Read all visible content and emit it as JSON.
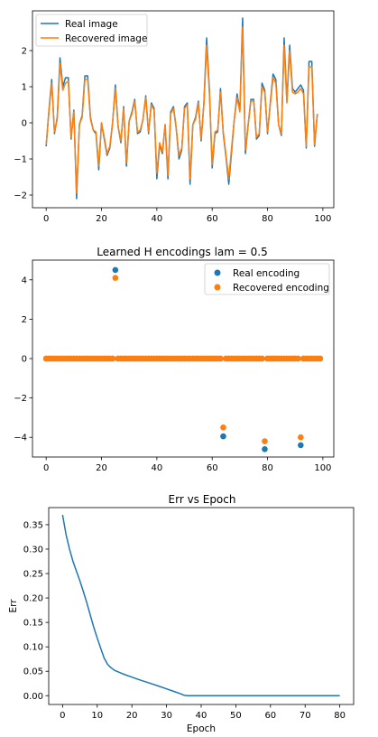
{
  "chart_data": [
    {
      "type": "line",
      "title": "",
      "xlabel": "",
      "ylabel": "",
      "xlim": [
        -4.95,
        103.95
      ],
      "ylim": [
        -2.35,
        3.1
      ],
      "xticks": [
        0,
        20,
        40,
        60,
        80,
        100
      ],
      "yticks": [
        -2,
        -1,
        0,
        1,
        2
      ],
      "legend": "top-left",
      "series": [
        {
          "name": "Real image",
          "color": "#1f77b4",
          "values": [
            -0.65,
            0.35,
            1.2,
            -0.3,
            0.15,
            1.8,
            1.0,
            1.25,
            1.25,
            -0.45,
            0.35,
            -2.1,
            -0.05,
            0.2,
            1.3,
            1.3,
            0.15,
            -0.2,
            -0.3,
            -1.3,
            0.0,
            -0.45,
            -0.9,
            -0.7,
            0.0,
            1.05,
            -0.1,
            -0.55,
            0.45,
            -1.2,
            0.05,
            0.3,
            0.65,
            -0.3,
            -0.25,
            0.1,
            0.75,
            -0.3,
            0.55,
            0.4,
            -1.55,
            -0.6,
            -0.85,
            -0.05,
            -1.55,
            0.3,
            0.45,
            -0.15,
            -1.0,
            -0.75,
            0.45,
            0.55,
            -1.7,
            -0.05,
            0.15,
            0.6,
            -0.5,
            0.55,
            2.35,
            0.9,
            -1.25,
            -0.3,
            -0.25,
            0.95,
            -0.3,
            -0.95,
            -1.7,
            -0.8,
            0.1,
            0.8,
            0.35,
            2.9,
            -0.85,
            -0.05,
            0.65,
            0.65,
            -0.45,
            -0.35,
            1.1,
            0.9,
            -0.3,
            0.55,
            1.35,
            1.2,
            -0.05,
            -0.35,
            2.35,
            0.6,
            2.15,
            0.95,
            0.85,
            0.95,
            1.05,
            0.9,
            -0.7,
            1.7,
            1.7,
            -0.65,
            0.25,
            null
          ],
          "note": ""
        },
        {
          "name": "Recovered image",
          "color": "#ff7f0e",
          "values": [
            -0.6,
            0.3,
            1.1,
            -0.25,
            0.1,
            1.65,
            0.9,
            1.1,
            1.15,
            -0.4,
            0.3,
            -1.95,
            -0.05,
            0.15,
            1.2,
            1.2,
            0.1,
            -0.2,
            -0.25,
            -1.2,
            0.0,
            -0.4,
            -0.85,
            -0.65,
            0.0,
            0.95,
            -0.1,
            -0.5,
            0.4,
            -1.1,
            0.05,
            0.25,
            0.6,
            -0.25,
            -0.2,
            0.1,
            0.7,
            -0.25,
            0.5,
            0.35,
            -1.4,
            -0.55,
            -0.8,
            -0.05,
            -1.45,
            0.25,
            0.4,
            -0.15,
            -0.9,
            -0.7,
            0.4,
            0.5,
            -1.55,
            -0.05,
            0.1,
            0.55,
            -0.45,
            0.5,
            2.15,
            0.8,
            -1.15,
            -0.25,
            -0.2,
            0.85,
            -0.25,
            -0.9,
            -1.55,
            -0.7,
            0.1,
            0.7,
            0.3,
            2.65,
            -0.75,
            -0.05,
            0.6,
            0.6,
            -0.4,
            -0.3,
            1.0,
            0.85,
            -0.25,
            0.5,
            1.25,
            1.1,
            -0.05,
            -0.3,
            2.15,
            0.55,
            2.0,
            0.85,
            0.8,
            0.85,
            0.95,
            0.8,
            -0.65,
            1.55,
            1.55,
            -0.6,
            0.25,
            null
          ]
        }
      ]
    },
    {
      "type": "scatter",
      "title": "Learned H encodings lam = 0.5",
      "xlabel": "",
      "ylabel": "",
      "xlim": [
        -4.95,
        103.95
      ],
      "ylim": [
        -5.0,
        5.0
      ],
      "xticks": [
        0,
        20,
        40,
        60,
        80,
        100
      ],
      "yticks": [
        -4,
        -2,
        0,
        2,
        4
      ],
      "legend": "top-right",
      "zero_range": [
        0,
        99
      ],
      "series": [
        {
          "name": "Real encoding",
          "color": "#1f77b4",
          "nonzero": [
            [
              25,
              4.5
            ],
            [
              64,
              -3.95
            ],
            [
              79,
              -4.6
            ],
            [
              92,
              -4.4
            ]
          ]
        },
        {
          "name": "Recovered encoding",
          "color": "#ff7f0e",
          "nonzero": [
            [
              25,
              4.1
            ],
            [
              64,
              -3.5
            ],
            [
              79,
              -4.2
            ],
            [
              92,
              -4.0
            ]
          ]
        }
      ]
    },
    {
      "type": "line",
      "title": "Err vs Epoch",
      "xlabel": "Epoch",
      "ylabel": "Err",
      "xlim": [
        -4.0,
        84.0
      ],
      "ylim": [
        -0.018,
        0.385
      ],
      "xticks": [
        0,
        10,
        20,
        30,
        40,
        50,
        60,
        70,
        80
      ],
      "yticks": [
        0.0,
        0.05,
        0.1,
        0.15,
        0.2,
        0.25,
        0.3,
        0.35
      ],
      "ytick_labels": [
        "0.00",
        "0.05",
        "0.10",
        "0.15",
        "0.20",
        "0.25",
        "0.30",
        "0.35"
      ],
      "series": [
        {
          "name": "",
          "color": "#1f77b4",
          "x": [
            0,
            1,
            2,
            3,
            4,
            5,
            6,
            7,
            8,
            9,
            10,
            11,
            12,
            13,
            14,
            15,
            16,
            17,
            18,
            20,
            22,
            25,
            28,
            30,
            32,
            34,
            35,
            36,
            40,
            50,
            60,
            70,
            80
          ],
          "y": [
            0.37,
            0.33,
            0.3,
            0.275,
            0.255,
            0.235,
            0.213,
            0.19,
            0.165,
            0.14,
            0.118,
            0.097,
            0.077,
            0.064,
            0.057,
            0.052,
            0.049,
            0.046,
            0.043,
            0.038,
            0.033,
            0.026,
            0.019,
            0.014,
            0.009,
            0.004,
            0.001,
            0.0,
            0.0,
            0.0,
            0.0,
            0.0,
            0.0
          ]
        }
      ]
    }
  ]
}
